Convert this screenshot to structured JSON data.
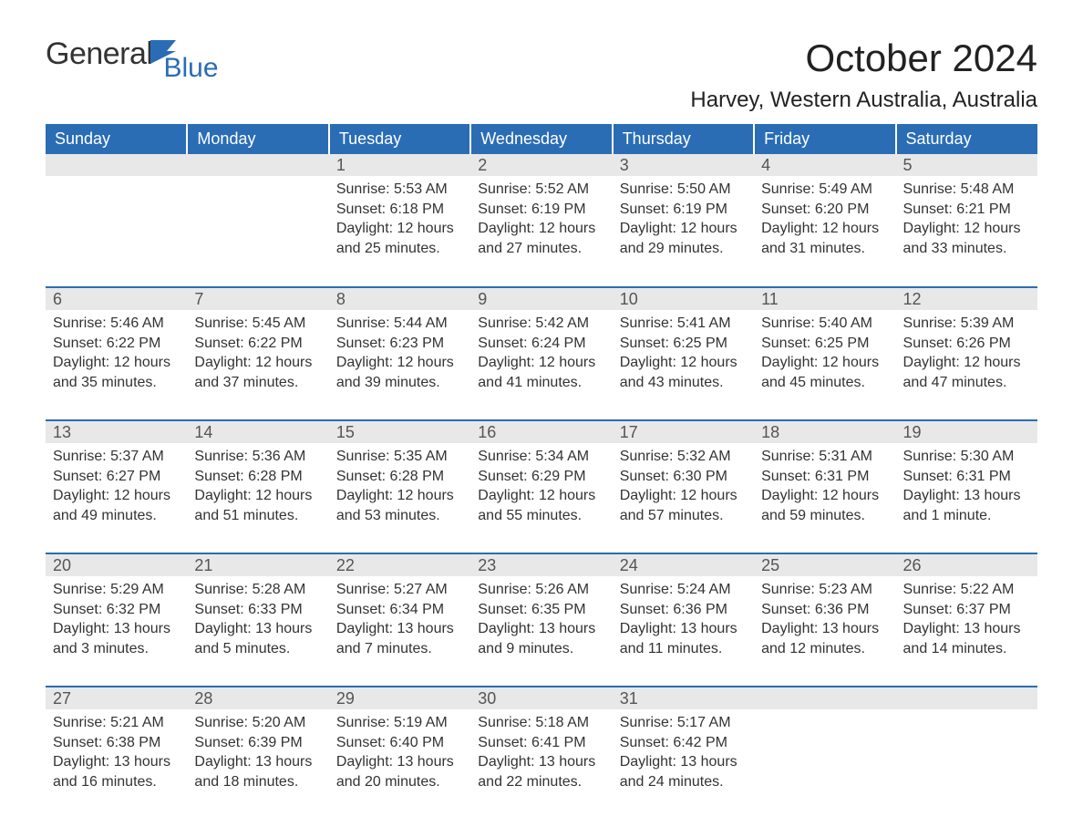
{
  "logo": {
    "word1": "General",
    "word2": "Blue"
  },
  "title": "October 2024",
  "location": "Harvey, Western Australia, Australia",
  "colors": {
    "header_bg": "#2a6db5",
    "header_text": "#ffffff",
    "daynum_bg": "#e8e8e8",
    "daynum_text": "#555555",
    "body_text": "#333333",
    "row_border": "#2a6db5",
    "page_bg": "#ffffff",
    "logo_blue": "#2a6db5"
  },
  "typography": {
    "title_fontsize": 42,
    "location_fontsize": 24,
    "header_fontsize": 18,
    "daynum_fontsize": 18,
    "body_fontsize": 16
  },
  "weekdays": [
    "Sunday",
    "Monday",
    "Tuesday",
    "Wednesday",
    "Thursday",
    "Friday",
    "Saturday"
  ],
  "labels": {
    "sunrise": "Sunrise:",
    "sunset": "Sunset:",
    "daylight": "Daylight:"
  },
  "weeks": [
    [
      {
        "day": "",
        "sunrise": "",
        "sunset": "",
        "daylight": ""
      },
      {
        "day": "",
        "sunrise": "",
        "sunset": "",
        "daylight": ""
      },
      {
        "day": "1",
        "sunrise": "5:53 AM",
        "sunset": "6:18 PM",
        "daylight": "12 hours and 25 minutes."
      },
      {
        "day": "2",
        "sunrise": "5:52 AM",
        "sunset": "6:19 PM",
        "daylight": "12 hours and 27 minutes."
      },
      {
        "day": "3",
        "sunrise": "5:50 AM",
        "sunset": "6:19 PM",
        "daylight": "12 hours and 29 minutes."
      },
      {
        "day": "4",
        "sunrise": "5:49 AM",
        "sunset": "6:20 PM",
        "daylight": "12 hours and 31 minutes."
      },
      {
        "day": "5",
        "sunrise": "5:48 AM",
        "sunset": "6:21 PM",
        "daylight": "12 hours and 33 minutes."
      }
    ],
    [
      {
        "day": "6",
        "sunrise": "5:46 AM",
        "sunset": "6:22 PM",
        "daylight": "12 hours and 35 minutes."
      },
      {
        "day": "7",
        "sunrise": "5:45 AM",
        "sunset": "6:22 PM",
        "daylight": "12 hours and 37 minutes."
      },
      {
        "day": "8",
        "sunrise": "5:44 AM",
        "sunset": "6:23 PM",
        "daylight": "12 hours and 39 minutes."
      },
      {
        "day": "9",
        "sunrise": "5:42 AM",
        "sunset": "6:24 PM",
        "daylight": "12 hours and 41 minutes."
      },
      {
        "day": "10",
        "sunrise": "5:41 AM",
        "sunset": "6:25 PM",
        "daylight": "12 hours and 43 minutes."
      },
      {
        "day": "11",
        "sunrise": "5:40 AM",
        "sunset": "6:25 PM",
        "daylight": "12 hours and 45 minutes."
      },
      {
        "day": "12",
        "sunrise": "5:39 AM",
        "sunset": "6:26 PM",
        "daylight": "12 hours and 47 minutes."
      }
    ],
    [
      {
        "day": "13",
        "sunrise": "5:37 AM",
        "sunset": "6:27 PM",
        "daylight": "12 hours and 49 minutes."
      },
      {
        "day": "14",
        "sunrise": "5:36 AM",
        "sunset": "6:28 PM",
        "daylight": "12 hours and 51 minutes."
      },
      {
        "day": "15",
        "sunrise": "5:35 AM",
        "sunset": "6:28 PM",
        "daylight": "12 hours and 53 minutes."
      },
      {
        "day": "16",
        "sunrise": "5:34 AM",
        "sunset": "6:29 PM",
        "daylight": "12 hours and 55 minutes."
      },
      {
        "day": "17",
        "sunrise": "5:32 AM",
        "sunset": "6:30 PM",
        "daylight": "12 hours and 57 minutes."
      },
      {
        "day": "18",
        "sunrise": "5:31 AM",
        "sunset": "6:31 PM",
        "daylight": "12 hours and 59 minutes."
      },
      {
        "day": "19",
        "sunrise": "5:30 AM",
        "sunset": "6:31 PM",
        "daylight": "13 hours and 1 minute."
      }
    ],
    [
      {
        "day": "20",
        "sunrise": "5:29 AM",
        "sunset": "6:32 PM",
        "daylight": "13 hours and 3 minutes."
      },
      {
        "day": "21",
        "sunrise": "5:28 AM",
        "sunset": "6:33 PM",
        "daylight": "13 hours and 5 minutes."
      },
      {
        "day": "22",
        "sunrise": "5:27 AM",
        "sunset": "6:34 PM",
        "daylight": "13 hours and 7 minutes."
      },
      {
        "day": "23",
        "sunrise": "5:26 AM",
        "sunset": "6:35 PM",
        "daylight": "13 hours and 9 minutes."
      },
      {
        "day": "24",
        "sunrise": "5:24 AM",
        "sunset": "6:36 PM",
        "daylight": "13 hours and 11 minutes."
      },
      {
        "day": "25",
        "sunrise": "5:23 AM",
        "sunset": "6:36 PM",
        "daylight": "13 hours and 12 minutes."
      },
      {
        "day": "26",
        "sunrise": "5:22 AM",
        "sunset": "6:37 PM",
        "daylight": "13 hours and 14 minutes."
      }
    ],
    [
      {
        "day": "27",
        "sunrise": "5:21 AM",
        "sunset": "6:38 PM",
        "daylight": "13 hours and 16 minutes."
      },
      {
        "day": "28",
        "sunrise": "5:20 AM",
        "sunset": "6:39 PM",
        "daylight": "13 hours and 18 minutes."
      },
      {
        "day": "29",
        "sunrise": "5:19 AM",
        "sunset": "6:40 PM",
        "daylight": "13 hours and 20 minutes."
      },
      {
        "day": "30",
        "sunrise": "5:18 AM",
        "sunset": "6:41 PM",
        "daylight": "13 hours and 22 minutes."
      },
      {
        "day": "31",
        "sunrise": "5:17 AM",
        "sunset": "6:42 PM",
        "daylight": "13 hours and 24 minutes."
      },
      {
        "day": "",
        "sunrise": "",
        "sunset": "",
        "daylight": ""
      },
      {
        "day": "",
        "sunrise": "",
        "sunset": "",
        "daylight": ""
      }
    ]
  ]
}
